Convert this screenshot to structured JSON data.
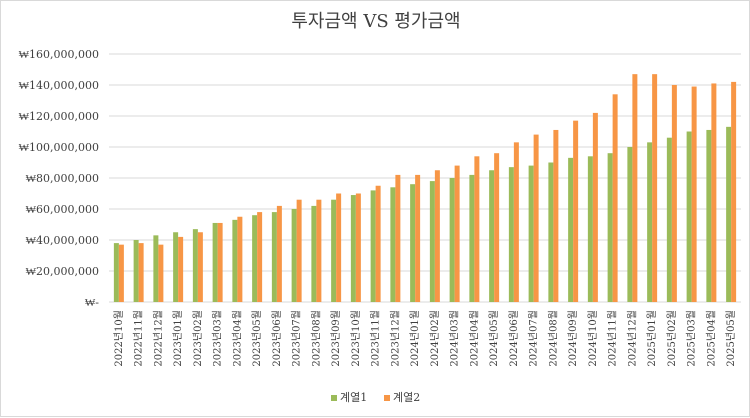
{
  "chart_data": {
    "type": "bar",
    "title": "투자금액 VS 평가금액",
    "categories": [
      "2022년10월",
      "2022년11월",
      "2022년12월",
      "2023년01월",
      "2023년02월",
      "2023년03월",
      "2023년04월",
      "2023년05월",
      "2023년06월",
      "2023년07월",
      "2023년08월",
      "2023년09월",
      "2023년10월",
      "2023년11월",
      "2023년12월",
      "2024년01월",
      "2024년02월",
      "2024년03월",
      "2024년04월",
      "2024년05월",
      "2024년06월",
      "2024년07월",
      "2024년08월",
      "2024년09월",
      "2024년10월",
      "2024년11월",
      "2024년12월",
      "2025년01월",
      "2025년02월",
      "2025년03월",
      "2025년04월",
      "2025년05월"
    ],
    "series": [
      {
        "name": "계열1",
        "color": "#9bbb59",
        "values": [
          38000000,
          40000000,
          43000000,
          45000000,
          47000000,
          51000000,
          53000000,
          56000000,
          58000000,
          60000000,
          62000000,
          66000000,
          69000000,
          72000000,
          74000000,
          76000000,
          78000000,
          80000000,
          82000000,
          85000000,
          87000000,
          88000000,
          90000000,
          93000000,
          94000000,
          96000000,
          100000000,
          103000000,
          106000000,
          110000000,
          111000000,
          113000000
        ]
      },
      {
        "name": "계열2",
        "color": "#f79646",
        "values": [
          37000000,
          38000000,
          37000000,
          42000000,
          45000000,
          51000000,
          55000000,
          58000000,
          62000000,
          66000000,
          66000000,
          70000000,
          70000000,
          75000000,
          82000000,
          82000000,
          85000000,
          88000000,
          94000000,
          96000000,
          103000000,
          108000000,
          111000000,
          117000000,
          122000000,
          134000000,
          147000000,
          147000000,
          140000000,
          139000000,
          141000000,
          142000000
        ]
      }
    ],
    "ylim": [
      0,
      160000000
    ],
    "ytick_values": [
      0,
      20000000,
      40000000,
      60000000,
      80000000,
      100000000,
      120000000,
      140000000,
      160000000
    ],
    "ytick_labels": [
      "₩-",
      "₩20,000,000",
      "₩40,000,000",
      "₩60,000,000",
      "₩80,000,000",
      "₩100,000,000",
      "₩120,000,000",
      "₩140,000,000",
      "₩160,000,000"
    ],
    "grid": true,
    "legend_position": "bottom",
    "gridline_color": "#d9d9d9"
  }
}
